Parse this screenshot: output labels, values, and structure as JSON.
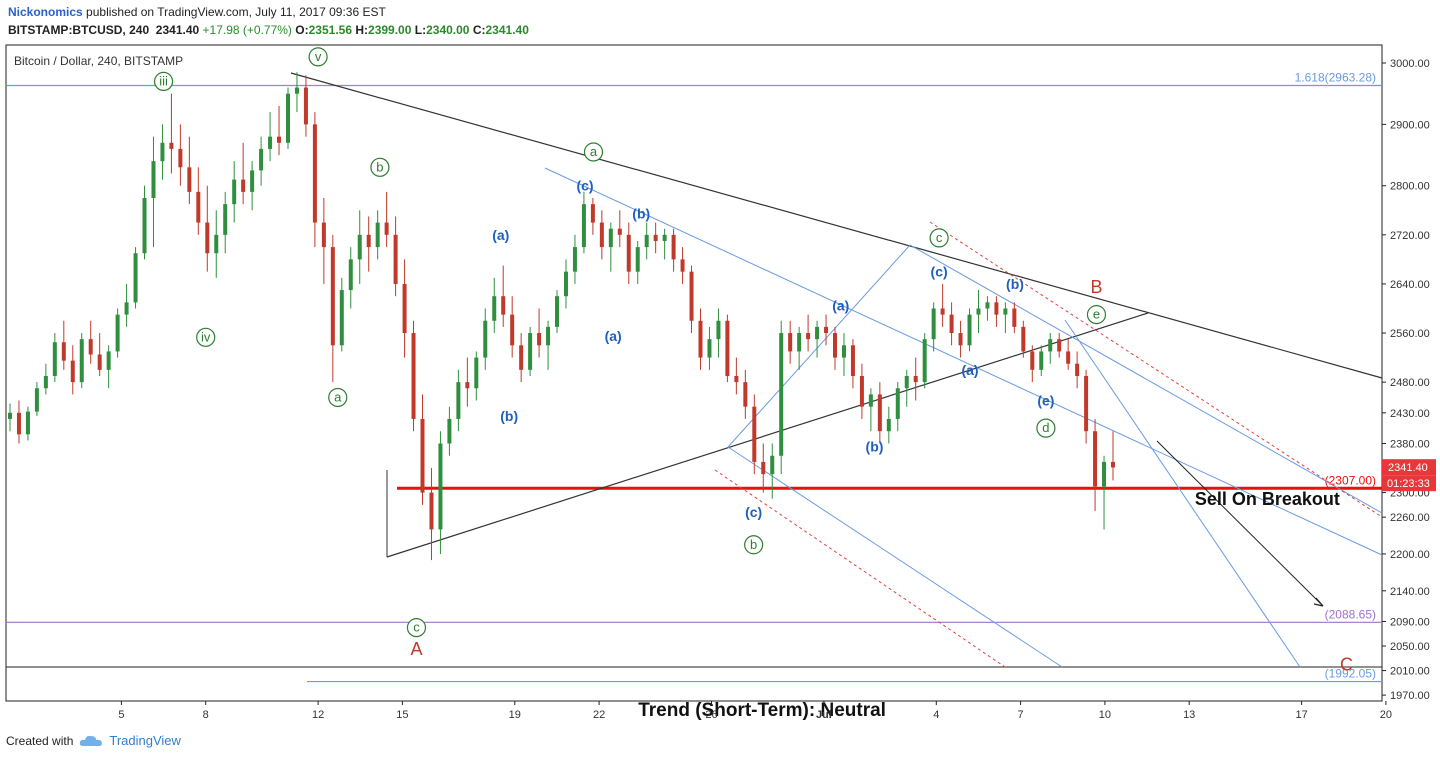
{
  "header": {
    "author": "Nickonomics",
    "published": "published on TradingView.com, July 11, 2017 09:36 EST",
    "symbol": "BITSTAMP:BTCUSD, 240",
    "last": "2341.40",
    "change": "+17.98 (+0.77%)",
    "o_label": "O:",
    "o": "2351.56",
    "h_label": "H:",
    "h": "2399.00",
    "l_label": "L:",
    "l": "2340.00",
    "c_label": "C:",
    "c": "2341.40"
  },
  "footer": {
    "created_with": "Created with",
    "brand": "TradingView"
  },
  "colors": {
    "up": "#2f8f3e",
    "down": "#c0392b",
    "wave_green": "#2e7d32",
    "wave_blue": "#1f5fbf",
    "price_tag": "#e8363a",
    "trend_line": "#333333",
    "channel": "#6a9be0",
    "red_dotted": "#e84040",
    "breakout": "#e81010",
    "level_purple": "#a070d0"
  },
  "chart_data": {
    "type": "candlestick",
    "title": "Bitcoin / Dollar, 240, BITSTAMP",
    "ylim": [
      1950,
      3040
    ],
    "y_ticks": [
      "3000.00",
      "2900.00",
      "2800.00",
      "2720.00",
      "2640.00",
      "2560.00",
      "2480.00",
      "2430.00",
      "2380.00",
      "2300.00",
      "2260.00",
      "2200.00",
      "2140.00",
      "2090.00",
      "2050.00",
      "2010.00",
      "1970.00"
    ],
    "x_ticks": [
      {
        "label": "5",
        "day": 5
      },
      {
        "label": "8",
        "day": 8
      },
      {
        "label": "12",
        "day": 12
      },
      {
        "label": "15",
        "day": 15
      },
      {
        "label": "19",
        "day": 19
      },
      {
        "label": "22",
        "day": 22
      },
      {
        "label": "26",
        "day": 26
      },
      {
        "label": "Jul",
        "day": 30
      },
      {
        "label": "4",
        "day": 34
      },
      {
        "label": "7",
        "day": 37
      },
      {
        "label": "10",
        "day": 40
      },
      {
        "label": "13",
        "day": 43
      },
      {
        "label": "17",
        "day": 47
      },
      {
        "label": "20",
        "day": 50
      }
    ],
    "price_tag": {
      "value": 2341.4,
      "label": "2341.40",
      "countdown": "01:23:33"
    },
    "levels": [
      {
        "value": 2963.28,
        "label": "1.618(2963.28)",
        "color": "#6a9be0"
      },
      {
        "value": 2307.0,
        "label": "(2307.00)",
        "color": "#e81010"
      },
      {
        "value": 2088.65,
        "label": "(2088.65)",
        "color": "#a070d0"
      },
      {
        "value": 1992.05,
        "label": "(1992.05)",
        "color": "#6a9be0"
      }
    ],
    "candles": [
      [
        2420,
        2445,
        2400,
        2430
      ],
      [
        2430,
        2450,
        2380,
        2395
      ],
      [
        2395,
        2440,
        2385,
        2432
      ],
      [
        2432,
        2480,
        2425,
        2470
      ],
      [
        2470,
        2510,
        2460,
        2490
      ],
      [
        2490,
        2560,
        2480,
        2545
      ],
      [
        2545,
        2580,
        2500,
        2515
      ],
      [
        2515,
        2540,
        2460,
        2480
      ],
      [
        2480,
        2560,
        2470,
        2550
      ],
      [
        2550,
        2580,
        2510,
        2525
      ],
      [
        2525,
        2560,
        2490,
        2500
      ],
      [
        2500,
        2540,
        2470,
        2530
      ],
      [
        2530,
        2600,
        2520,
        2590
      ],
      [
        2590,
        2640,
        2570,
        2610
      ],
      [
        2610,
        2700,
        2600,
        2690
      ],
      [
        2690,
        2800,
        2680,
        2780
      ],
      [
        2780,
        2880,
        2700,
        2840
      ],
      [
        2840,
        2900,
        2810,
        2870
      ],
      [
        2870,
        2950,
        2820,
        2860
      ],
      [
        2860,
        2900,
        2800,
        2830
      ],
      [
        2830,
        2880,
        2770,
        2790
      ],
      [
        2790,
        2830,
        2720,
        2740
      ],
      [
        2740,
        2800,
        2660,
        2690
      ],
      [
        2690,
        2760,
        2650,
        2720
      ],
      [
        2720,
        2790,
        2690,
        2770
      ],
      [
        2770,
        2840,
        2740,
        2810
      ],
      [
        2810,
        2870,
        2770,
        2790
      ],
      [
        2790,
        2840,
        2760,
        2825
      ],
      [
        2825,
        2880,
        2800,
        2860
      ],
      [
        2860,
        2920,
        2840,
        2880
      ],
      [
        2880,
        2930,
        2850,
        2870
      ],
      [
        2870,
        2960,
        2860,
        2950
      ],
      [
        2950,
        2985,
        2920,
        2960
      ],
      [
        2960,
        2980,
        2880,
        2900
      ],
      [
        2900,
        2920,
        2700,
        2740
      ],
      [
        2740,
        2780,
        2640,
        2700
      ],
      [
        2700,
        2720,
        2480,
        2540
      ],
      [
        2540,
        2650,
        2530,
        2630
      ],
      [
        2630,
        2700,
        2600,
        2680
      ],
      [
        2680,
        2760,
        2640,
        2720
      ],
      [
        2720,
        2750,
        2660,
        2700
      ],
      [
        2700,
        2760,
        2680,
        2740
      ],
      [
        2740,
        2790,
        2700,
        2720
      ],
      [
        2720,
        2750,
        2620,
        2640
      ],
      [
        2640,
        2680,
        2520,
        2560
      ],
      [
        2560,
        2580,
        2400,
        2420
      ],
      [
        2420,
        2460,
        2280,
        2300
      ],
      [
        2300,
        2340,
        2190,
        2240
      ],
      [
        2240,
        2400,
        2200,
        2380
      ],
      [
        2380,
        2440,
        2360,
        2420
      ],
      [
        2420,
        2500,
        2400,
        2480
      ],
      [
        2480,
        2520,
        2440,
        2470
      ],
      [
        2470,
        2530,
        2450,
        2520
      ],
      [
        2520,
        2600,
        2500,
        2580
      ],
      [
        2580,
        2650,
        2560,
        2620
      ],
      [
        2620,
        2670,
        2570,
        2590
      ],
      [
        2590,
        2620,
        2520,
        2540
      ],
      [
        2540,
        2560,
        2480,
        2500
      ],
      [
        2500,
        2570,
        2490,
        2560
      ],
      [
        2560,
        2600,
        2520,
        2540
      ],
      [
        2540,
        2580,
        2500,
        2570
      ],
      [
        2570,
        2630,
        2560,
        2620
      ],
      [
        2620,
        2680,
        2600,
        2660
      ],
      [
        2660,
        2720,
        2640,
        2700
      ],
      [
        2700,
        2790,
        2690,
        2770
      ],
      [
        2770,
        2780,
        2720,
        2740
      ],
      [
        2740,
        2760,
        2680,
        2700
      ],
      [
        2700,
        2740,
        2660,
        2730
      ],
      [
        2730,
        2760,
        2700,
        2720
      ],
      [
        2720,
        2740,
        2640,
        2660
      ],
      [
        2660,
        2710,
        2640,
        2700
      ],
      [
        2700,
        2740,
        2680,
        2720
      ],
      [
        2720,
        2740,
        2690,
        2710
      ],
      [
        2710,
        2730,
        2680,
        2720
      ],
      [
        2720,
        2730,
        2660,
        2680
      ],
      [
        2680,
        2700,
        2640,
        2660
      ],
      [
        2660,
        2670,
        2560,
        2580
      ],
      [
        2580,
        2600,
        2500,
        2520
      ],
      [
        2520,
        2570,
        2500,
        2550
      ],
      [
        2550,
        2600,
        2520,
        2580
      ],
      [
        2580,
        2590,
        2480,
        2490
      ],
      [
        2490,
        2520,
        2460,
        2480
      ],
      [
        2480,
        2500,
        2420,
        2440
      ],
      [
        2440,
        2460,
        2330,
        2350
      ],
      [
        2350,
        2380,
        2300,
        2330
      ],
      [
        2330,
        2380,
        2290,
        2360
      ],
      [
        2360,
        2580,
        2330,
        2560
      ],
      [
        2560,
        2580,
        2510,
        2530
      ],
      [
        2530,
        2570,
        2500,
        2560
      ],
      [
        2560,
        2590,
        2530,
        2550
      ],
      [
        2550,
        2580,
        2520,
        2570
      ],
      [
        2570,
        2590,
        2540,
        2560
      ],
      [
        2560,
        2570,
        2500,
        2520
      ],
      [
        2520,
        2560,
        2490,
        2540
      ],
      [
        2540,
        2550,
        2470,
        2490
      ],
      [
        2490,
        2510,
        2420,
        2440
      ],
      [
        2440,
        2470,
        2400,
        2460
      ],
      [
        2460,
        2480,
        2380,
        2400
      ],
      [
        2400,
        2440,
        2380,
        2420
      ],
      [
        2420,
        2480,
        2400,
        2470
      ],
      [
        2470,
        2500,
        2440,
        2490
      ],
      [
        2490,
        2520,
        2450,
        2480
      ],
      [
        2480,
        2560,
        2470,
        2550
      ],
      [
        2550,
        2610,
        2530,
        2600
      ],
      [
        2600,
        2640,
        2570,
        2590
      ],
      [
        2590,
        2610,
        2540,
        2560
      ],
      [
        2560,
        2580,
        2520,
        2540
      ],
      [
        2540,
        2600,
        2530,
        2590
      ],
      [
        2590,
        2630,
        2560,
        2600
      ],
      [
        2600,
        2620,
        2580,
        2610
      ],
      [
        2610,
        2620,
        2570,
        2590
      ],
      [
        2590,
        2610,
        2560,
        2600
      ],
      [
        2600,
        2610,
        2560,
        2570
      ],
      [
        2570,
        2580,
        2520,
        2530
      ],
      [
        2530,
        2540,
        2480,
        2500
      ],
      [
        2500,
        2540,
        2490,
        2530
      ],
      [
        2530,
        2560,
        2510,
        2550
      ],
      [
        2550,
        2560,
        2520,
        2530
      ],
      [
        2530,
        2550,
        2500,
        2510
      ],
      [
        2510,
        2530,
        2470,
        2490
      ],
      [
        2490,
        2500,
        2380,
        2400
      ],
      [
        2400,
        2420,
        2270,
        2310
      ],
      [
        2310,
        2360,
        2240,
        2350
      ],
      [
        2350,
        2400,
        2320,
        2341
      ]
    ],
    "wave_labels": [
      {
        "text": "iii",
        "day": 6.5,
        "price": 2970,
        "style": "green-circle"
      },
      {
        "text": "iv",
        "day": 8,
        "price": 2553,
        "style": "green-circle"
      },
      {
        "text": "v",
        "day": 12,
        "price": 3010,
        "style": "green-circle"
      },
      {
        "text": "a",
        "day": 12.7,
        "price": 2455,
        "style": "green-circle"
      },
      {
        "text": "b",
        "day": 14.2,
        "price": 2830,
        "style": "green-circle"
      },
      {
        "text": "c",
        "day": 15.5,
        "price": 2080,
        "style": "green-circle"
      },
      {
        "text": "A",
        "day": 15.5,
        "price": 2045,
        "style": "red"
      },
      {
        "text": "(a)",
        "day": 18.5,
        "price": 2720,
        "style": "blue"
      },
      {
        "text": "(b)",
        "day": 18.8,
        "price": 2425,
        "style": "blue"
      },
      {
        "text": "a",
        "day": 21.8,
        "price": 2855,
        "style": "green-circle"
      },
      {
        "text": "(c)",
        "day": 21.5,
        "price": 2800,
        "style": "blue"
      },
      {
        "text": "(a)",
        "day": 22.5,
        "price": 2555,
        "style": "blue"
      },
      {
        "text": "(b)",
        "day": 23.5,
        "price": 2755,
        "style": "blue"
      },
      {
        "text": "(a)",
        "day": 30.6,
        "price": 2605,
        "style": "blue"
      },
      {
        "text": "(c)",
        "day": 27.5,
        "price": 2268,
        "style": "blue"
      },
      {
        "text": "b",
        "day": 27.5,
        "price": 2215,
        "style": "green-circle"
      },
      {
        "text": "(b)",
        "day": 31.8,
        "price": 2375,
        "style": "blue"
      },
      {
        "text": "c",
        "day": 34.1,
        "price": 2715,
        "style": "green-circle"
      },
      {
        "text": "(c)",
        "day": 34.1,
        "price": 2660,
        "style": "blue"
      },
      {
        "text": "(a)",
        "day": 35.2,
        "price": 2500,
        "style": "blue"
      },
      {
        "text": "(b)",
        "day": 36.8,
        "price": 2640,
        "style": "blue"
      },
      {
        "text": "B",
        "day": 39.7,
        "price": 2635,
        "style": "red"
      },
      {
        "text": "e",
        "day": 39.7,
        "price": 2590,
        "style": "green-circle"
      },
      {
        "text": "(e)",
        "day": 37.9,
        "price": 2450,
        "style": "blue"
      },
      {
        "text": "d",
        "day": 37.9,
        "price": 2405,
        "style": "green-circle"
      },
      {
        "text": "C",
        "day": 48.6,
        "price": 2020,
        "style": "red"
      }
    ],
    "annotations": [
      {
        "text": "Sell On Breakout",
        "day": 43.2,
        "price": 2280
      },
      {
        "text": "Trend (Short-Term): Neutral",
        "day": 27.8,
        "price": 1936
      }
    ],
    "grid": false,
    "legend": "none"
  }
}
